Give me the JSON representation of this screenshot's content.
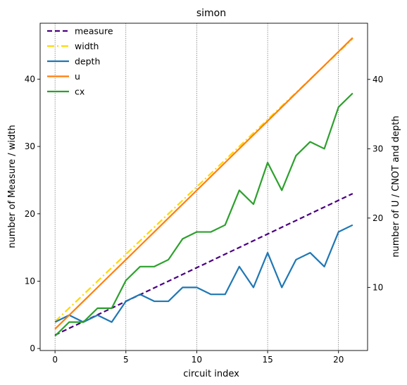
{
  "chart_data": {
    "type": "line",
    "title": "simon",
    "xlabel": "circuit index",
    "ylabel_left": "number of Measure / width",
    "ylabel_right": "number of U / CNOT and depth",
    "x": [
      0,
      1,
      2,
      3,
      4,
      5,
      6,
      7,
      8,
      9,
      10,
      11,
      12,
      13,
      14,
      15,
      16,
      17,
      18,
      19,
      20,
      21
    ],
    "xlim": [
      -1.05,
      22.05
    ],
    "ylim_left": [
      -0.3,
      48.3
    ],
    "ylim_right": [
      0.9,
      48.1
    ],
    "xticks": [
      0,
      5,
      10,
      15,
      20
    ],
    "yticks_left": [
      0,
      10,
      20,
      30,
      40
    ],
    "yticks_right": [
      10,
      20,
      30,
      40
    ],
    "vertical_grid_at": [
      0,
      5,
      10,
      15,
      20
    ],
    "legend_position": "top-left",
    "series": [
      {
        "name": "measure",
        "axis": "left",
        "style": "dashed",
        "color": "#4b0082",
        "values": [
          2,
          3,
          4,
          5,
          6,
          7,
          8,
          9,
          10,
          11,
          12,
          13,
          14,
          15,
          16,
          17,
          18,
          19,
          20,
          21,
          22,
          23
        ]
      },
      {
        "name": "width",
        "axis": "left",
        "style": "dashdot",
        "color": "#ffd700",
        "values": [
          4,
          6,
          8,
          10,
          12,
          14,
          16,
          18,
          20,
          22,
          24,
          26,
          28,
          30,
          32,
          34,
          36,
          38,
          40,
          42,
          44,
          46
        ]
      },
      {
        "name": "depth",
        "axis": "right",
        "style": "solid",
        "color": "#1f77b4",
        "values": [
          5,
          6,
          5,
          6,
          5,
          8,
          9,
          8,
          8,
          10,
          10,
          9,
          9,
          13,
          10,
          15,
          10,
          14,
          15,
          13,
          18,
          19
        ]
      },
      {
        "name": "u",
        "axis": "right",
        "style": "solid",
        "color": "#ff7f0e",
        "values": [
          4,
          6,
          8,
          10,
          12,
          14,
          16,
          18,
          20,
          22,
          24,
          26,
          28,
          30,
          32,
          34,
          36,
          38,
          40,
          42,
          44,
          46
        ]
      },
      {
        "name": "cx",
        "axis": "right",
        "style": "solid",
        "color": "#2ca02c",
        "values": [
          3,
          5,
          5,
          7,
          7,
          11,
          13,
          13,
          14,
          17,
          18,
          18,
          19,
          24,
          22,
          28,
          24,
          29,
          31,
          30,
          36,
          38
        ]
      }
    ]
  }
}
